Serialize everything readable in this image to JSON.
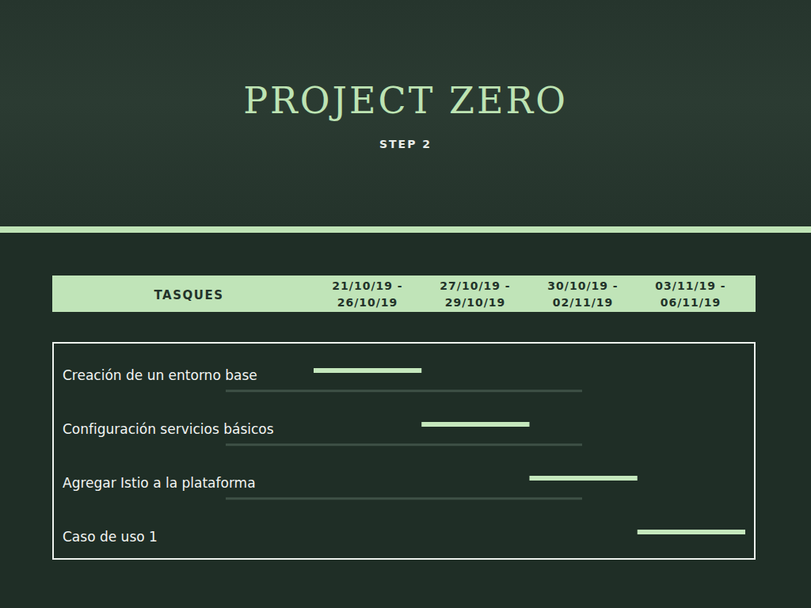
{
  "header": {
    "title": "PROJECT ZERO",
    "subtitle": "STEP 2"
  },
  "chart_data": {
    "type": "gantt",
    "orientation": "horizontal",
    "color": "#c5e8bd",
    "column_header": "TASQUES",
    "categories": [
      "21/10/19 - 26/10/19",
      "27/10/19 - 29/10/19",
      "30/10/19 - 02/11/19",
      "03/11/19 - 06/11/19"
    ],
    "tasks": [
      {
        "name": "Creación de un entorno base",
        "period": "21/10/19 - 26/10/19"
      },
      {
        "name": "Configuración servicios básicos",
        "period": "27/10/19 - 29/10/19"
      },
      {
        "name": "Agregar Istio a la plataforma",
        "period": "30/10/19 - 02/11/19"
      },
      {
        "name": "Caso de uso 1",
        "period": "03/11/19 - 06/11/19"
      }
    ]
  }
}
